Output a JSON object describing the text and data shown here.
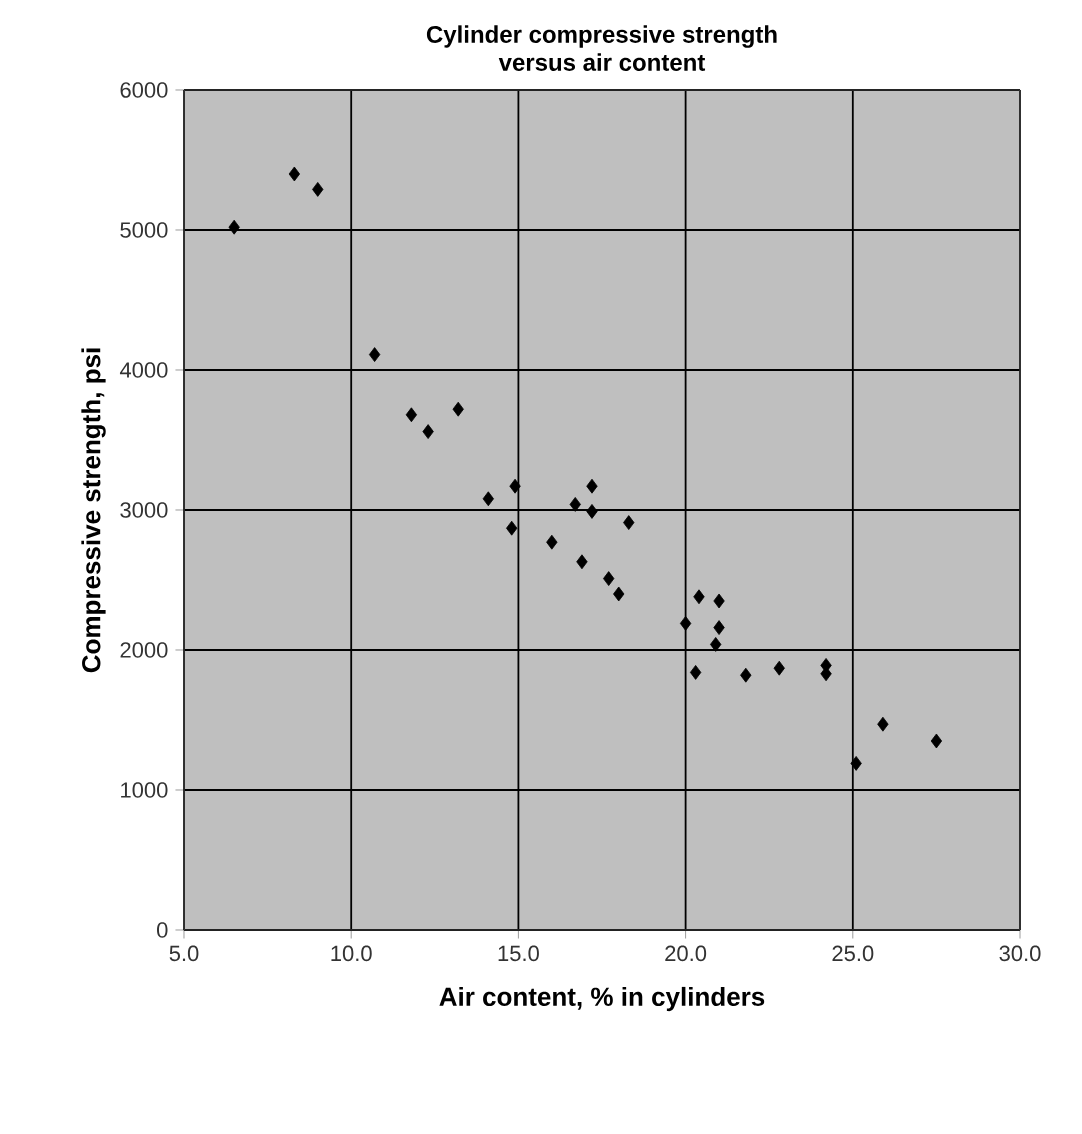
{
  "chart_data": {
    "type": "scatter",
    "title": "Cylinder compressive strength\nversus air content",
    "xlabel": "Air content, % in cylinders",
    "ylabel": "Compressive strength, psi",
    "x": [
      6.5,
      8.3,
      9.0,
      10.7,
      11.8,
      12.3,
      13.2,
      14.1,
      14.8,
      14.9,
      16.0,
      16.7,
      16.9,
      17.2,
      17.2,
      17.7,
      18.0,
      18.3,
      20.0,
      20.3,
      20.4,
      20.9,
      21.0,
      21.0,
      21.8,
      22.8,
      24.2,
      24.2,
      25.1,
      25.9,
      27.5
    ],
    "values": [
      5020,
      5400,
      5290,
      4110,
      3680,
      3560,
      3720,
      3080,
      2870,
      3170,
      2770,
      3040,
      2630,
      3170,
      2990,
      2510,
      2400,
      2910,
      2190,
      1840,
      2380,
      2040,
      2350,
      2160,
      1820,
      1870,
      1890,
      1830,
      1190,
      1470,
      1350
    ],
    "color": "#000000",
    "marker": "diamond",
    "grid": true,
    "xlim": [
      5.0,
      30.0
    ],
    "xticks": [
      {
        "value": 5,
        "label": "5.0"
      },
      {
        "value": 10,
        "label": "10.0"
      },
      {
        "value": 15,
        "label": "15.0"
      },
      {
        "value": 20,
        "label": "20.0"
      },
      {
        "value": 25,
        "label": "25.0"
      },
      {
        "value": 30,
        "label": "30.0"
      }
    ],
    "ylim": [
      0,
      6000
    ],
    "yticks": [
      0,
      1000,
      2000,
      3000,
      4000,
      5000,
      6000
    ]
  }
}
